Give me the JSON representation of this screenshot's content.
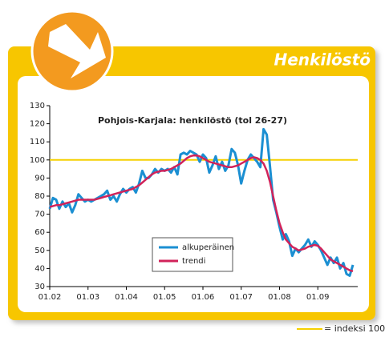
{
  "header": {
    "title": "Henkilöstö"
  },
  "footer_note": "= indeksi 100",
  "chart_data": {
    "type": "line",
    "title": "Pohjois-Karjala: henkilöstö (tol 26-27)",
    "categories": [
      "01.02",
      null,
      null,
      null,
      null,
      null,
      null,
      null,
      null,
      null,
      null,
      null,
      "01.03",
      null,
      null,
      null,
      null,
      null,
      null,
      null,
      null,
      null,
      null,
      null,
      "01.04",
      null,
      null,
      null,
      null,
      null,
      null,
      null,
      null,
      null,
      null,
      null,
      "01.05",
      null,
      null,
      null,
      null,
      null,
      null,
      null,
      null,
      null,
      null,
      null,
      "01.06",
      null,
      null,
      null,
      null,
      null,
      null,
      null,
      null,
      null,
      null,
      null,
      "01.07",
      null,
      null,
      null,
      null,
      null,
      null,
      null,
      null,
      null,
      null,
      null,
      "01.08",
      null,
      null,
      null,
      null,
      null,
      null,
      null,
      null,
      null,
      null,
      null,
      "01.09",
      null,
      null,
      null,
      null,
      null,
      null,
      null,
      null,
      null,
      null,
      null
    ],
    "series": [
      {
        "name": "alkuperäinen",
        "color": "#1b8fd2",
        "values": [
          73,
          79,
          78,
          73,
          77,
          74,
          76,
          71,
          75,
          81,
          79,
          77,
          78,
          77,
          78,
          79,
          80,
          81,
          83,
          78,
          80,
          77,
          81,
          84,
          82,
          84,
          85,
          82,
          87,
          94,
          90,
          90,
          92,
          95,
          93,
          95,
          94,
          95,
          93,
          96,
          92,
          103,
          104,
          103,
          105,
          104,
          103,
          99,
          103,
          101,
          93,
          97,
          102,
          95,
          99,
          94,
          97,
          106,
          104,
          97,
          87,
          94,
          100,
          103,
          101,
          99,
          96,
          117,
          114,
          97,
          78,
          71,
          63,
          56,
          59,
          55,
          47,
          51,
          49,
          51,
          53,
          56,
          52,
          55,
          53,
          50,
          46,
          42,
          46,
          43,
          46,
          40,
          43,
          37,
          36,
          42
        ]
      },
      {
        "name": "trendi",
        "color": "#d1235a",
        "values": [
          74,
          74.5,
          75,
          75,
          75.5,
          76,
          76.5,
          77,
          77.5,
          78,
          78,
          78,
          78,
          78,
          78,
          78.5,
          79,
          79.5,
          80,
          80.5,
          81,
          81.5,
          82,
          82.5,
          83,
          83.5,
          84,
          85,
          86,
          87.5,
          89,
          90.5,
          92,
          93,
          93.5,
          94,
          94,
          94.5,
          95,
          96,
          97,
          98,
          99.5,
          101,
          102,
          102.5,
          102.5,
          102,
          101,
          100,
          99,
          98.5,
          98,
          97.5,
          97,
          96.5,
          96,
          96,
          96.5,
          97,
          98,
          99,
          100,
          101,
          101.5,
          101,
          100,
          98,
          94,
          88,
          80,
          72,
          65,
          60,
          56,
          54,
          52,
          51,
          50,
          50.5,
          51,
          52,
          52.5,
          53,
          52.5,
          51,
          49,
          47,
          45,
          44,
          43,
          42,
          41,
          40,
          39,
          38.5
        ]
      }
    ],
    "reference_line": {
      "value": 100,
      "color": "#f5d000"
    },
    "ylim": [
      30,
      130
    ],
    "yticks": [
      30,
      40,
      50,
      60,
      70,
      80,
      90,
      100,
      110,
      120,
      130
    ],
    "legend": "lower center"
  }
}
